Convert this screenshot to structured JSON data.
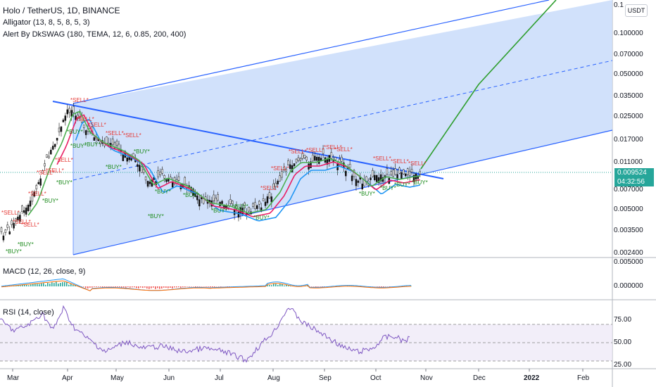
{
  "header": {
    "symbol_line": "Holo / TetherUS, 1D, BINANCE",
    "indicator_1": "Alligator (13, 8, 5, 8, 5, 3)",
    "indicator_2": "Alert By DkSWAG (180, TEMA, 12, 6, 0.85, 200, 400)"
  },
  "currency_button": "USDT",
  "price_axis": {
    "top_cut": "0.1",
    "labels": [
      "0.100000",
      "0.070000",
      "0.050000",
      "0.035000",
      "0.025000",
      "0.017000",
      "0.011000",
      "0.007000",
      "0.005000",
      "0.003500",
      "0.002400"
    ]
  },
  "last_price": {
    "value": "0.009524",
    "countdown": "04:32:56",
    "color": "#26a69a"
  },
  "macd": {
    "title": "MACD (12, 26, close, 9)",
    "labels": [
      "0.005000",
      "0.000000"
    ]
  },
  "rsi": {
    "title": "RSI (14, close)",
    "labels": [
      "75.00",
      "50.00",
      "25.00"
    ]
  },
  "time_axis": [
    "Mar",
    "Apr",
    "May",
    "Jun",
    "Jul",
    "Aug",
    "Sep",
    "Oct",
    "Nov",
    "Dec",
    "2022",
    "Feb"
  ],
  "signals": {
    "sell": "*SELL*",
    "buy": "*BUY*"
  },
  "colors": {
    "channel_fill": "#c9dcfa",
    "channel_line": "#2962ff",
    "projection": "#2e9e2e",
    "sell_text": "#e53935",
    "buy_text": "#1b8a1b",
    "rsi_line": "#7e57c2",
    "rsi_band": "#ede7f6",
    "macd_line": "#2196f3",
    "signal_line": "#ff6d00"
  }
}
